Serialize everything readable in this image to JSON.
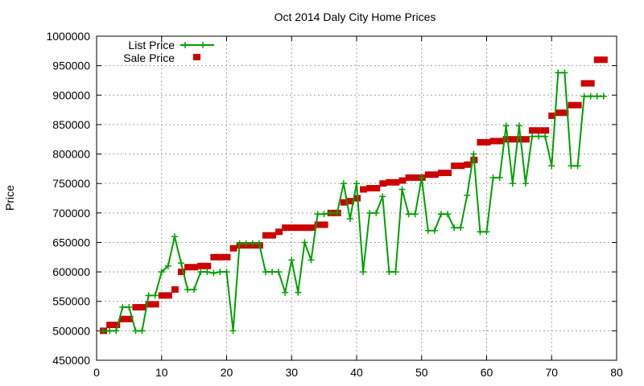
{
  "chart_data": {
    "type": "line",
    "title": "Oct 2014 Daly City Home Prices",
    "xlabel": "",
    "ylabel": "Price",
    "xlim": [
      0,
      80
    ],
    "ylim": [
      450000,
      1000000
    ],
    "xticks": [
      0,
      10,
      20,
      30,
      40,
      50,
      60,
      70,
      80
    ],
    "yticks": [
      450000,
      500000,
      550000,
      600000,
      650000,
      700000,
      750000,
      800000,
      850000,
      900000,
      950000,
      1000000
    ],
    "grid": true,
    "legend_position": "top-left",
    "x": [
      1,
      2,
      3,
      4,
      5,
      6,
      7,
      8,
      9,
      10,
      11,
      12,
      13,
      14,
      15,
      16,
      17,
      18,
      19,
      20,
      21,
      22,
      23,
      24,
      25,
      26,
      27,
      28,
      29,
      30,
      31,
      32,
      33,
      34,
      35,
      36,
      37,
      38,
      39,
      40,
      41,
      42,
      43,
      44,
      45,
      46,
      47,
      48,
      49,
      50,
      51,
      52,
      53,
      54,
      55,
      56,
      57,
      58,
      59,
      60,
      61,
      62,
      63,
      64,
      65,
      66,
      67,
      68,
      69,
      70,
      71,
      72,
      73,
      74,
      75,
      76,
      77,
      78
    ],
    "series": [
      {
        "name": "List Price",
        "color": "#00a000",
        "values": [
          500000,
          500000,
          500000,
          540000,
          540000,
          500000,
          500000,
          560000,
          560000,
          600000,
          610000,
          660000,
          615000,
          570000,
          570000,
          600000,
          600000,
          598000,
          600000,
          600000,
          500000,
          648000,
          648000,
          648000,
          648000,
          600000,
          600000,
          600000,
          565000,
          620000,
          565000,
          650000,
          620000,
          698000,
          698000,
          700000,
          700000,
          750000,
          690000,
          750000,
          600000,
          700000,
          700000,
          728000,
          600000,
          600000,
          740000,
          698000,
          698000,
          760000,
          670000,
          670000,
          698000,
          698000,
          675000,
          675000,
          730000,
          800000,
          668000,
          668000,
          760000,
          760000,
          848000,
          750000,
          848000,
          750000,
          830000,
          830000,
          830000,
          780000,
          938000,
          938000,
          780000,
          780000,
          898000,
          898000,
          898000,
          898000
        ]
      },
      {
        "name": "Sale Price",
        "color": "#cc0000",
        "values": [
          500000,
          510000,
          510000,
          520000,
          520000,
          540000,
          540000,
          545000,
          545000,
          560000,
          560000,
          570000,
          600000,
          608000,
          608000,
          610000,
          610000,
          625000,
          625000,
          625000,
          640000,
          645000,
          645000,
          645000,
          645000,
          662000,
          662000,
          668000,
          675000,
          675000,
          675000,
          675000,
          675000,
          680000,
          680000,
          700000,
          700000,
          718000,
          720000,
          725000,
          740000,
          742000,
          742000,
          750000,
          752000,
          752000,
          755000,
          760000,
          760000,
          760000,
          765000,
          765000,
          768000,
          768000,
          780000,
          780000,
          782000,
          790000,
          820000,
          820000,
          822000,
          822000,
          825000,
          825000,
          825000,
          825000,
          840000,
          840000,
          840000,
          865000,
          870000,
          870000,
          883000,
          883000,
          920000,
          920000,
          960000,
          960000
        ]
      }
    ]
  }
}
